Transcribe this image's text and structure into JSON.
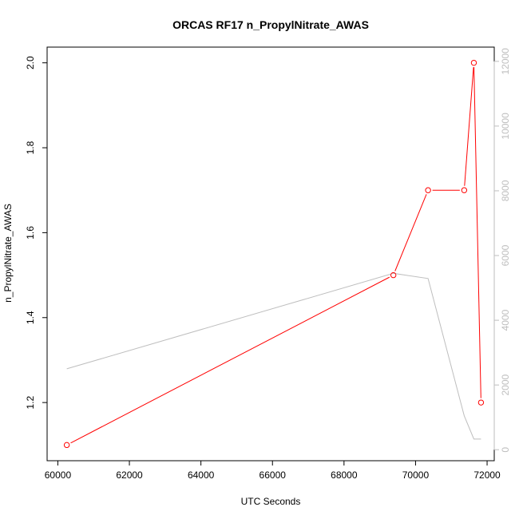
{
  "chart_data": {
    "type": "line",
    "title": "ORCAS RF17 n_PropylNitrate_AWAS",
    "xlabel": "UTC Seconds",
    "ylabel": "n_PropylNitrate_AWAS",
    "xlim": [
      59700,
      72200
    ],
    "ylim": [
      1.063,
      2.037
    ],
    "y2lim": [
      -340,
      12440
    ],
    "x_ticks": [
      60000,
      62000,
      64000,
      66000,
      68000,
      70000,
      72000
    ],
    "y_ticks": [
      1.2,
      1.4,
      1.6,
      1.8,
      2.0
    ],
    "y2_ticks": [
      0,
      2000,
      4000,
      6000,
      8000,
      10000,
      12000
    ],
    "x_tick_labels": [
      "60000",
      "62000",
      "64000",
      "66000",
      "68000",
      "70000",
      "72000"
    ],
    "y_tick_labels": [
      "1.2",
      "1.4",
      "1.6",
      "1.8",
      "2.0"
    ],
    "y2_tick_labels": [
      "0",
      "2000",
      "4000",
      "6000",
      "8000",
      "10000",
      "12000"
    ],
    "grid": false,
    "series": [
      {
        "axis": "left",
        "color": "#ff0000",
        "markers": "open-circle",
        "x": [
          60250,
          69380,
          70350,
          71360,
          71630,
          71830
        ],
        "y": [
          1.1,
          1.5,
          1.7,
          1.7,
          2.0,
          1.2
        ]
      },
      {
        "axis": "right",
        "color": "#bebebe",
        "markers": "none",
        "x": [
          60250,
          69380,
          70350,
          71360,
          71630,
          71830
        ],
        "y": [
          2500,
          5450,
          5290,
          1050,
          330,
          330
        ]
      }
    ]
  }
}
